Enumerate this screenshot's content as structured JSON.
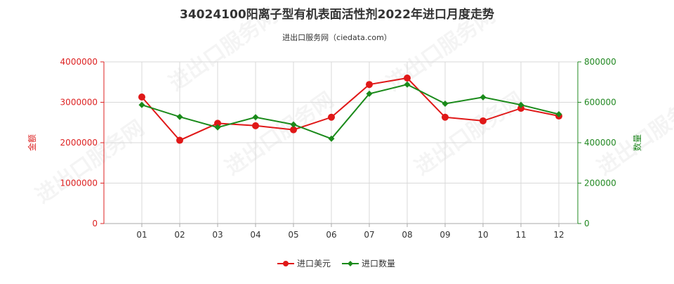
{
  "chart_data": {
    "type": "line",
    "title": "34024100阳离子型有机表面活性剂2022年进口月度走势",
    "subtitle": "进出口服务网（ciedata.com）",
    "watermark": "进出口服务网",
    "x": [
      "01",
      "02",
      "03",
      "04",
      "05",
      "06",
      "07",
      "08",
      "09",
      "10",
      "11",
      "12"
    ],
    "y_left": {
      "label": "金额",
      "ticks": [
        "0",
        "1000000",
        "2000000",
        "3000000",
        "4000000"
      ],
      "range": [
        0,
        4000000
      ],
      "color": "#dd2222"
    },
    "y_right": {
      "label": "数量",
      "ticks": [
        "0",
        "200000",
        "400000",
        "600000",
        "800000"
      ],
      "range": [
        0,
        800000
      ],
      "color": "#228822"
    },
    "grid": true,
    "legend_position": "bottom",
    "series": [
      {
        "name": "进口美元",
        "axis": "left",
        "color": "#e01818",
        "values": [
          3130000,
          2060000,
          2480000,
          2420000,
          2320000,
          2630000,
          3440000,
          3600000,
          2630000,
          2540000,
          2850000,
          2660000
        ]
      },
      {
        "name": "进口数量",
        "axis": "right",
        "color": "#1a8a1a",
        "values": [
          587000,
          528000,
          476000,
          526000,
          490000,
          420000,
          642000,
          688000,
          593000,
          625000,
          587000,
          541000
        ]
      }
    ]
  }
}
